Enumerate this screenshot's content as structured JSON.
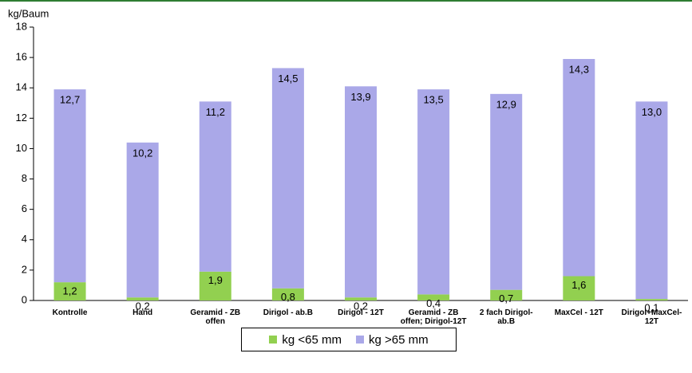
{
  "chart_data": {
    "type": "stacked_bar",
    "y_label": "kg/Baum",
    "categories": [
      "Kontrolle",
      "Hand",
      "Geramid - ZB offen",
      "Dirigol - ab.B",
      "Dirigol - 12T",
      "Geramid - ZB offen; Dirigol-12T",
      "2 fach Dirigol-ab.B",
      "MaxCel - 12T",
      "Dirigol+MaxCel-12T"
    ],
    "series": [
      {
        "name": "kg <65 mm",
        "color": "#92d050",
        "values": [
          1.2,
          0.2,
          1.9,
          0.8,
          0.2,
          0.4,
          0.7,
          1.6,
          0.1
        ],
        "value_labels": [
          "1,2",
          "0,2",
          "1,9",
          "0,8",
          "0,2",
          "0,4",
          "0,7",
          "1,6",
          "0,1"
        ]
      },
      {
        "name": "kg >65 mm",
        "color": "#aaa8e8",
        "values": [
          12.7,
          10.2,
          11.2,
          14.5,
          13.9,
          13.5,
          12.9,
          14.3,
          13.0
        ],
        "value_labels": [
          "12,7",
          "10,2",
          "11,2",
          "14,5",
          "13,9",
          "13,5",
          "12,9",
          "14,3",
          "13,0"
        ]
      }
    ],
    "ylim": [
      0,
      18
    ],
    "yticks": [
      0,
      2,
      4,
      6,
      8,
      10,
      12,
      14,
      16,
      18
    ],
    "grid": false
  }
}
